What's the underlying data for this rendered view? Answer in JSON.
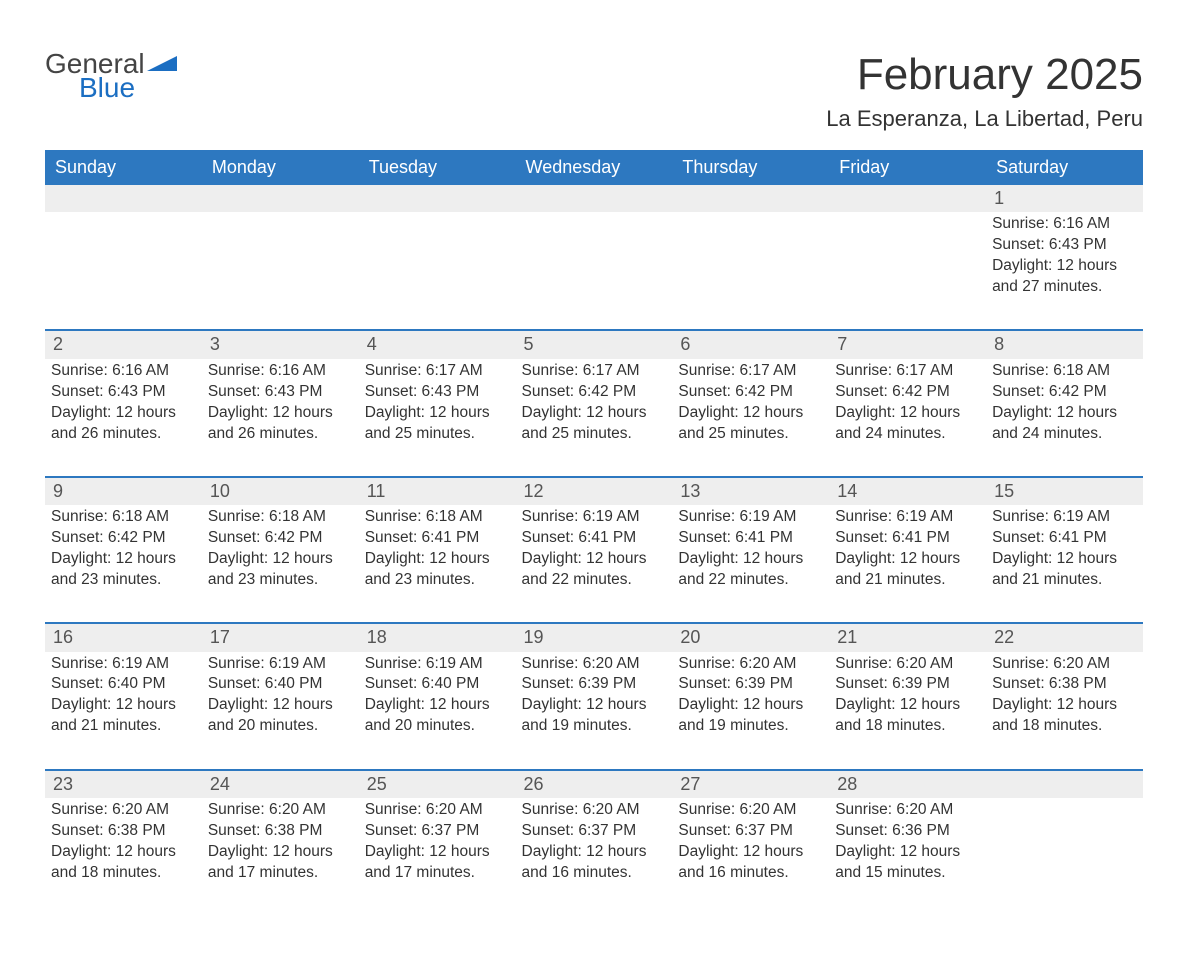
{
  "brand": {
    "general": "General",
    "blue": "Blue"
  },
  "title": "February 2025",
  "location": "La Esperanza, La Libertad, Peru",
  "colors": {
    "header_bg": "#2d78c0",
    "header_text": "#ffffff",
    "row_accent": "#2d78c0",
    "day_row_bg": "#eeeeee",
    "text": "#333333",
    "logo_blue": "#1b6ec2",
    "logo_dark": "#444444",
    "background": "#ffffff"
  },
  "typography": {
    "title_fontsize": 44,
    "location_fontsize": 22,
    "weekday_fontsize": 18,
    "daynum_fontsize": 18,
    "body_fontsize": 15.5
  },
  "weekdays": [
    "Sunday",
    "Monday",
    "Tuesday",
    "Wednesday",
    "Thursday",
    "Friday",
    "Saturday"
  ],
  "grid": {
    "columns": 7,
    "rows": 5,
    "start_weekday_index": 6
  },
  "days": [
    {
      "n": 1,
      "sunrise": "6:16 AM",
      "sunset": "6:43 PM",
      "daylight": "12 hours and 27 minutes."
    },
    {
      "n": 2,
      "sunrise": "6:16 AM",
      "sunset": "6:43 PM",
      "daylight": "12 hours and 26 minutes."
    },
    {
      "n": 3,
      "sunrise": "6:16 AM",
      "sunset": "6:43 PM",
      "daylight": "12 hours and 26 minutes."
    },
    {
      "n": 4,
      "sunrise": "6:17 AM",
      "sunset": "6:43 PM",
      "daylight": "12 hours and 25 minutes."
    },
    {
      "n": 5,
      "sunrise": "6:17 AM",
      "sunset": "6:42 PM",
      "daylight": "12 hours and 25 minutes."
    },
    {
      "n": 6,
      "sunrise": "6:17 AM",
      "sunset": "6:42 PM",
      "daylight": "12 hours and 25 minutes."
    },
    {
      "n": 7,
      "sunrise": "6:17 AM",
      "sunset": "6:42 PM",
      "daylight": "12 hours and 24 minutes."
    },
    {
      "n": 8,
      "sunrise": "6:18 AM",
      "sunset": "6:42 PM",
      "daylight": "12 hours and 24 minutes."
    },
    {
      "n": 9,
      "sunrise": "6:18 AM",
      "sunset": "6:42 PM",
      "daylight": "12 hours and 23 minutes."
    },
    {
      "n": 10,
      "sunrise": "6:18 AM",
      "sunset": "6:42 PM",
      "daylight": "12 hours and 23 minutes."
    },
    {
      "n": 11,
      "sunrise": "6:18 AM",
      "sunset": "6:41 PM",
      "daylight": "12 hours and 23 minutes."
    },
    {
      "n": 12,
      "sunrise": "6:19 AM",
      "sunset": "6:41 PM",
      "daylight": "12 hours and 22 minutes."
    },
    {
      "n": 13,
      "sunrise": "6:19 AM",
      "sunset": "6:41 PM",
      "daylight": "12 hours and 22 minutes."
    },
    {
      "n": 14,
      "sunrise": "6:19 AM",
      "sunset": "6:41 PM",
      "daylight": "12 hours and 21 minutes."
    },
    {
      "n": 15,
      "sunrise": "6:19 AM",
      "sunset": "6:41 PM",
      "daylight": "12 hours and 21 minutes."
    },
    {
      "n": 16,
      "sunrise": "6:19 AM",
      "sunset": "6:40 PM",
      "daylight": "12 hours and 21 minutes."
    },
    {
      "n": 17,
      "sunrise": "6:19 AM",
      "sunset": "6:40 PM",
      "daylight": "12 hours and 20 minutes."
    },
    {
      "n": 18,
      "sunrise": "6:19 AM",
      "sunset": "6:40 PM",
      "daylight": "12 hours and 20 minutes."
    },
    {
      "n": 19,
      "sunrise": "6:20 AM",
      "sunset": "6:39 PM",
      "daylight": "12 hours and 19 minutes."
    },
    {
      "n": 20,
      "sunrise": "6:20 AM",
      "sunset": "6:39 PM",
      "daylight": "12 hours and 19 minutes."
    },
    {
      "n": 21,
      "sunrise": "6:20 AM",
      "sunset": "6:39 PM",
      "daylight": "12 hours and 18 minutes."
    },
    {
      "n": 22,
      "sunrise": "6:20 AM",
      "sunset": "6:38 PM",
      "daylight": "12 hours and 18 minutes."
    },
    {
      "n": 23,
      "sunrise": "6:20 AM",
      "sunset": "6:38 PM",
      "daylight": "12 hours and 18 minutes."
    },
    {
      "n": 24,
      "sunrise": "6:20 AM",
      "sunset": "6:38 PM",
      "daylight": "12 hours and 17 minutes."
    },
    {
      "n": 25,
      "sunrise": "6:20 AM",
      "sunset": "6:37 PM",
      "daylight": "12 hours and 17 minutes."
    },
    {
      "n": 26,
      "sunrise": "6:20 AM",
      "sunset": "6:37 PM",
      "daylight": "12 hours and 16 minutes."
    },
    {
      "n": 27,
      "sunrise": "6:20 AM",
      "sunset": "6:37 PM",
      "daylight": "12 hours and 16 minutes."
    },
    {
      "n": 28,
      "sunrise": "6:20 AM",
      "sunset": "6:36 PM",
      "daylight": "12 hours and 15 minutes."
    }
  ],
  "labels": {
    "sunrise_prefix": "Sunrise: ",
    "sunset_prefix": "Sunset: ",
    "daylight_prefix": "Daylight: "
  }
}
